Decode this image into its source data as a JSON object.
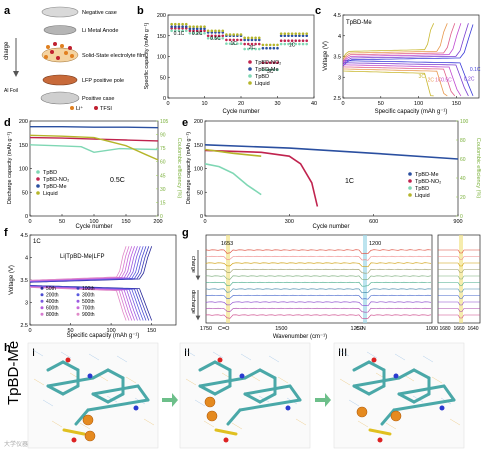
{
  "panels": {
    "a": {
      "letter": "a",
      "components": [
        "Negative case",
        "Li Metal Anode",
        "Solid-State electrolyte film",
        "LFP positive pole",
        "Positive case"
      ],
      "charge_label": "charge",
      "foil_label": "Al Foil",
      "legend": [
        "Li⁺",
        "TFSI"
      ]
    },
    "b": {
      "letter": "b"
    },
    "c": {
      "letter": "c"
    },
    "d": {
      "letter": "d"
    },
    "e": {
      "letter": "e"
    },
    "f": {
      "letter": "f"
    },
    "g": {
      "letter": "g"
    },
    "h": {
      "letter": "h",
      "side_label": "TpBD-Me",
      "stages": [
        "I",
        "II",
        "III"
      ]
    }
  },
  "watermark": "大学仪器",
  "colors": {
    "TpBD_NO2": "#c0234e",
    "TpBD_Me": "#2a4fa0",
    "TpBD": "#7fd7b4",
    "Liquid": "#b5b52a",
    "accent_purple": "#6633cc",
    "ce_axis": "#9fd05a"
  },
  "chart_data": [
    {
      "panel": "b",
      "type": "scatter",
      "xlabel": "Cycle number",
      "ylabel": "Specific capacity (mAh g⁻¹)",
      "xlim": [
        0,
        40
      ],
      "ylim": [
        0,
        200
      ],
      "xticks": [
        0,
        10,
        20,
        30,
        40
      ],
      "yticks": [
        0,
        50,
        100,
        150,
        200
      ],
      "rate_labels": [
        "0.1C",
        "0.2C",
        "0.5C",
        "1C",
        "2C",
        "3C",
        "1C"
      ],
      "legend": [
        "TpBD-NO₂",
        "TpBD-Me",
        "TpBD",
        "Liquid"
      ],
      "series": [
        {
          "name": "TpBD-NO₂",
          "segments": [
            [
              1,
              5,
              168
            ],
            [
              6,
              10,
              162
            ],
            [
              11,
              15,
              150
            ],
            [
              16,
              20,
              140
            ],
            [
              21,
              25,
              130
            ],
            [
              26,
              30,
              85
            ],
            [
              31,
              38,
              138
            ]
          ]
        },
        {
          "name": "TpBD-Me",
          "segments": [
            [
              1,
              5,
              172
            ],
            [
              6,
              10,
              167
            ],
            [
              11,
              15,
              158
            ],
            [
              16,
              20,
              150
            ],
            [
              21,
              25,
              140
            ],
            [
              26,
              30,
              120
            ],
            [
              31,
              38,
              150
            ]
          ]
        },
        {
          "name": "TpBD",
          "segments": [
            [
              1,
              5,
              162
            ],
            [
              6,
              10,
              156
            ],
            [
              11,
              15,
              144
            ],
            [
              16,
              20,
              131
            ],
            [
              21,
              25,
              118
            ],
            [
              26,
              30,
              68
            ],
            [
              31,
              38,
              130
            ]
          ]
        },
        {
          "name": "Liquid",
          "segments": [
            [
              1,
              5,
              178
            ],
            [
              6,
              10,
              172
            ],
            [
              11,
              15,
              162
            ],
            [
              16,
              20,
              153
            ],
            [
              21,
              25,
              145
            ],
            [
              26,
              30,
              128
            ],
            [
              31,
              38,
              155
            ]
          ]
        }
      ]
    },
    {
      "panel": "c",
      "type": "line",
      "inner_label": "TpBD-Me",
      "xlabel": "Specific capacity (mAh g⁻¹)",
      "ylabel": "Voltage (V)",
      "xlim": [
        0,
        180
      ],
      "ylim": [
        2.5,
        4.5
      ],
      "xticks": [
        0,
        50,
        100,
        150
      ],
      "yticks": [
        2.5,
        3.0,
        3.5,
        4.0,
        4.5
      ],
      "curve_labels": [
        "0.1C",
        "0.2C",
        "0.5C",
        "1C",
        "2C",
        "3C"
      ],
      "capacities": [
        172,
        166,
        156,
        148,
        138,
        120
      ]
    },
    {
      "panel": "d",
      "type": "line",
      "xlabel": "Cycle number",
      "ylabel": "Discharge capacity (mAh g⁻¹)",
      "ylabel_right": "Coulombic efficiency (%)",
      "xlim": [
        0,
        200
      ],
      "ylim": [
        0,
        200
      ],
      "y2lim": [
        0,
        105
      ],
      "xticks": [
        0,
        50,
        100,
        150,
        200
      ],
      "yticks": [
        0,
        50,
        100,
        150,
        200
      ],
      "y2ticks": [
        0,
        15,
        30,
        45,
        60,
        75,
        90,
        105
      ],
      "rate": "0.5C",
      "legend": [
        "TpBD",
        "TpBD-NO₂",
        "TpBD-Me",
        "Liquid"
      ],
      "series": [
        {
          "name": "TpBD",
          "x": [
            0,
            40,
            80,
            100,
            140,
            200
          ],
          "y": [
            150,
            148,
            146,
            134,
            142,
            140
          ]
        },
        {
          "name": "TpBD-NO₂",
          "x": [
            0,
            50,
            100,
            150,
            200
          ],
          "y": [
            165,
            164,
            162,
            160,
            158
          ]
        },
        {
          "name": "TpBD-Me",
          "x": [
            0,
            50,
            100,
            150,
            200
          ],
          "y": [
            188,
            188,
            187,
            187,
            186
          ]
        },
        {
          "name": "Liquid",
          "x": [
            0,
            50,
            100,
            150,
            180,
            200
          ],
          "y": [
            170,
            168,
            165,
            148,
            130,
            118
          ]
        }
      ]
    },
    {
      "panel": "e",
      "type": "line",
      "xlabel": "Cycle number",
      "ylabel": "Discharge capacity (mAh g⁻¹)",
      "ylabel_right": "Coulombic efficiency (%)",
      "xlim": [
        0,
        900
      ],
      "ylim": [
        0,
        200
      ],
      "y2lim": [
        0,
        100
      ],
      "xticks": [
        0,
        300,
        600,
        900
      ],
      "yticks": [
        0,
        50,
        100,
        150,
        200
      ],
      "y2ticks": [
        0,
        20,
        40,
        60,
        80,
        100
      ],
      "rate": "1C",
      "legend": [
        "TpBD-Me",
        "TpBD-NO₂",
        "TpBD",
        "Liquid"
      ],
      "series": [
        {
          "name": "TpBD-Me",
          "x": [
            0,
            300,
            600,
            900
          ],
          "y": [
            150,
            143,
            132,
            120
          ]
        },
        {
          "name": "TpBD-NO₂",
          "x": [
            0,
            200,
            300,
            340,
            380,
            400
          ],
          "y": [
            138,
            134,
            126,
            110,
            70,
            20
          ]
        },
        {
          "name": "TpBD",
          "x": [
            0,
            50,
            100,
            150,
            200
          ],
          "y": [
            110,
            104,
            90,
            65,
            45
          ]
        },
        {
          "name": "Liquid",
          "x": [
            0,
            100,
            200
          ],
          "y": [
            140,
            132,
            126
          ]
        }
      ]
    },
    {
      "panel": "f",
      "type": "line",
      "inner_label": "1C",
      "title": "Li|TpBD-Me|LFP",
      "xlabel": "Specific capacity (mAh g⁻¹)",
      "ylabel": "Voltage (V)",
      "xlim": [
        0,
        180
      ],
      "ylim": [
        2.5,
        4.5
      ],
      "xticks": [
        0,
        50,
        100,
        150
      ],
      "yticks": [
        2.5,
        3.0,
        3.5,
        4.0,
        4.5
      ],
      "legend": [
        "50th",
        "100th",
        "200th",
        "300th",
        "400th",
        "500th",
        "600th",
        "700th",
        "800th",
        "900th"
      ]
    },
    {
      "panel": "g",
      "type": "line",
      "xlabel": "Wavenumber (cm⁻¹)",
      "xlim": [
        1750,
        1000
      ],
      "xticks": [
        1750,
        1500,
        1250,
        1000
      ],
      "inset_xticks": [
        1680,
        1660,
        1640
      ],
      "peaks": [
        "1653",
        "1200"
      ],
      "peak_labels": [
        "C=O",
        "C-N"
      ],
      "side_labels": [
        "charge",
        "discharge"
      ]
    }
  ]
}
